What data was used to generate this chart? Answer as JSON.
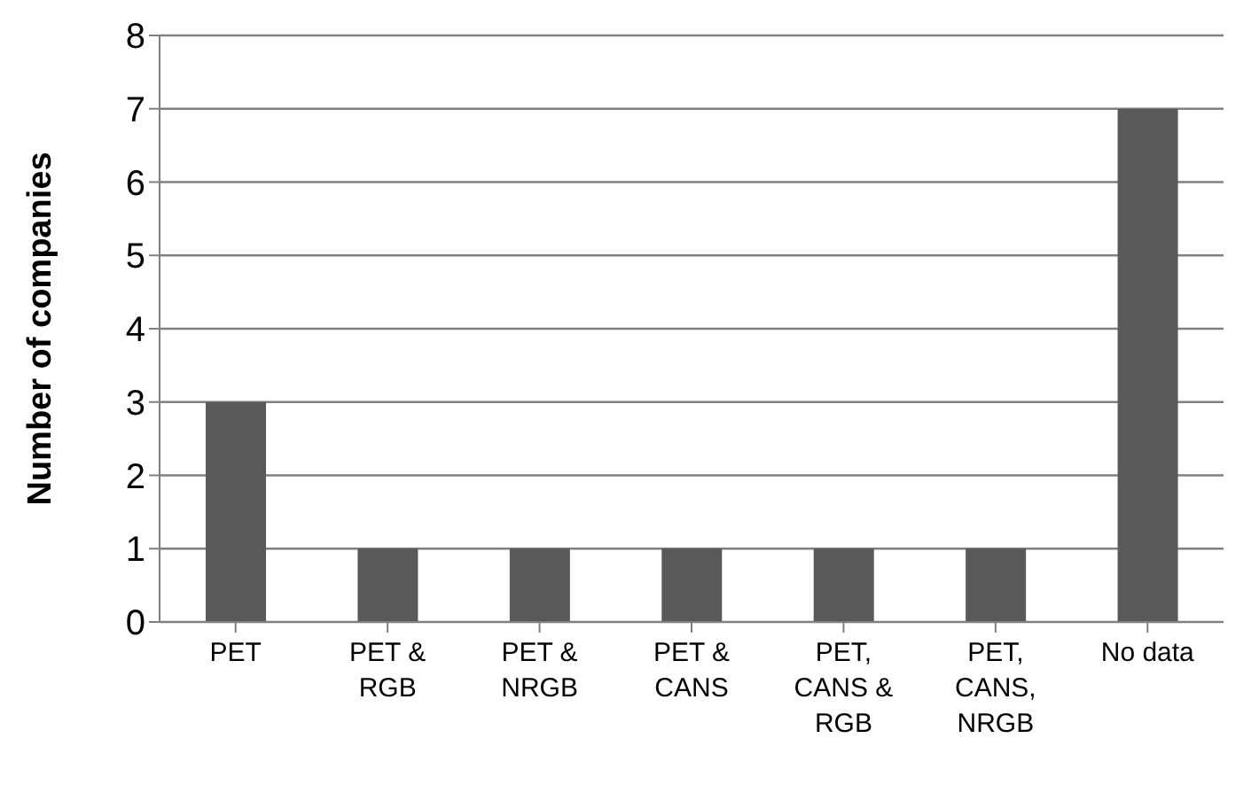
{
  "chart_data": {
    "type": "bar",
    "ylabel": "Number of companies",
    "categories": [
      "PET",
      "PET & RGB",
      "PET & NRGB",
      "PET & CANS",
      "PET, CANS & RGB",
      "PET, CANS, NRGB",
      "No data"
    ],
    "values": [
      3,
      1,
      1,
      1,
      1,
      1,
      7
    ],
    "color": "#595959",
    "ylim": [
      0,
      8
    ],
    "yticks": [
      0,
      1,
      2,
      3,
      4,
      5,
      6,
      7,
      8
    ],
    "grid": "y"
  }
}
